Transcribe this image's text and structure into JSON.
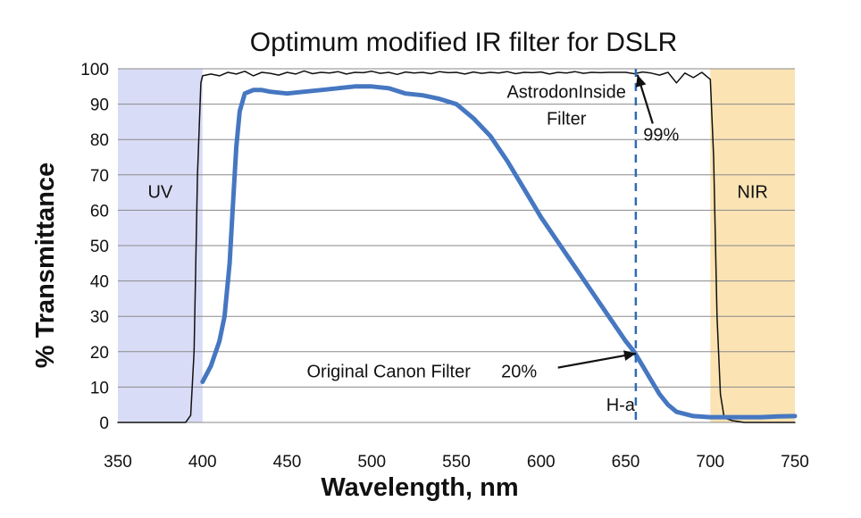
{
  "chart_data": {
    "type": "line",
    "title": "Optimum modified IR filter for DSLR",
    "xlabel": "Wavelength, nm",
    "ylabel": "% Transmittance",
    "xlim": [
      350,
      750
    ],
    "ylim": [
      0,
      100
    ],
    "xticks": [
      350,
      400,
      450,
      500,
      550,
      600,
      650,
      700,
      750
    ],
    "yticks": [
      0,
      10,
      20,
      30,
      40,
      50,
      60,
      70,
      80,
      90,
      100
    ],
    "grid": "horizontal",
    "bands": [
      {
        "label": "UV",
        "from": 350,
        "to": 400,
        "color": "#d9dcf6"
      },
      {
        "label": "NIR",
        "from": 700,
        "to": 750,
        "color": "#fbe3b4"
      }
    ],
    "series": [
      {
        "name": "AstrodonInside Filter",
        "color": "#111111",
        "x": [
          350,
          390,
          393,
          395,
          397,
          399,
          400,
          405,
          410,
          415,
          420,
          425,
          430,
          435,
          440,
          445,
          450,
          455,
          460,
          465,
          470,
          475,
          480,
          485,
          490,
          495,
          500,
          505,
          510,
          515,
          520,
          525,
          530,
          535,
          540,
          545,
          550,
          555,
          560,
          565,
          570,
          575,
          580,
          585,
          590,
          595,
          600,
          605,
          610,
          615,
          620,
          625,
          630,
          635,
          640,
          645,
          650,
          655,
          660,
          665,
          670,
          675,
          680,
          685,
          690,
          695,
          700,
          702,
          704,
          706,
          708,
          710,
          713,
          716,
          720,
          750
        ],
        "y": [
          0,
          0,
          2,
          20,
          70,
          96,
          98,
          98.5,
          98,
          99,
          98.5,
          99.3,
          98,
          99,
          98.7,
          98.2,
          99,
          98.5,
          99.4,
          98.6,
          99,
          98.8,
          99.2,
          98.5,
          99,
          98.9,
          99.3,
          98.7,
          99,
          98.4,
          99.1,
          98.8,
          99,
          98.6,
          99.2,
          98.9,
          99,
          98.5,
          99.1,
          98.7,
          99,
          98.8,
          99.2,
          98.6,
          99,
          98.9,
          99.1,
          98.5,
          99,
          98.8,
          99.2,
          98.7,
          99,
          98.9,
          99,
          99,
          99,
          98.6,
          99.1,
          98.8,
          98.2,
          99,
          96,
          98.8,
          97.5,
          99,
          97,
          75,
          30,
          8,
          2,
          1,
          0.5,
          0.3,
          0,
          0
        ]
      },
      {
        "name": "Original Canon Filter",
        "color": "#4677c1",
        "x": [
          400,
          405,
          410,
          413,
          416,
          418,
          420,
          422,
          425,
          430,
          435,
          440,
          450,
          460,
          470,
          480,
          490,
          500,
          510,
          520,
          530,
          540,
          550,
          560,
          570,
          580,
          590,
          600,
          610,
          620,
          630,
          640,
          650,
          655,
          660,
          665,
          670,
          675,
          680,
          690,
          700,
          710,
          720,
          730,
          740,
          750
        ],
        "y": [
          11.5,
          16,
          23,
          30,
          45,
          62,
          78,
          88,
          93,
          94,
          94,
          93.5,
          93,
          93.5,
          94,
          94.5,
          95,
          95,
          94.5,
          93,
          92.5,
          91.5,
          90,
          86,
          81,
          74,
          66,
          58,
          51,
          44,
          37,
          30,
          23,
          20,
          16,
          12,
          8,
          5,
          3,
          1.8,
          1.5,
          1.5,
          1.5,
          1.5,
          1.7,
          1.8
        ]
      }
    ],
    "h_alpha": {
      "x": 656,
      "label": "H-a",
      "color": "#2e6bb5"
    },
    "annotations": [
      {
        "text": "AstrodonInside",
        "x": 615,
        "y": 93.5
      },
      {
        "text": "Filter",
        "x": 615,
        "y": 86
      },
      {
        "text": "99%",
        "x": 671,
        "y": 81.5
      },
      {
        "text": "Original Canon Filter",
        "x": 510,
        "y": 14.5
      },
      {
        "text": "20%",
        "x": 587,
        "y": 14.5
      },
      {
        "text": "H-a",
        "x": 647,
        "y": 5
      }
    ],
    "arrows": [
      {
        "from": [
          666,
          84.5
        ],
        "to": [
          657,
          98.3
        ]
      },
      {
        "from": [
          610,
          15.5
        ],
        "to": [
          656,
          19.5
        ]
      }
    ]
  }
}
